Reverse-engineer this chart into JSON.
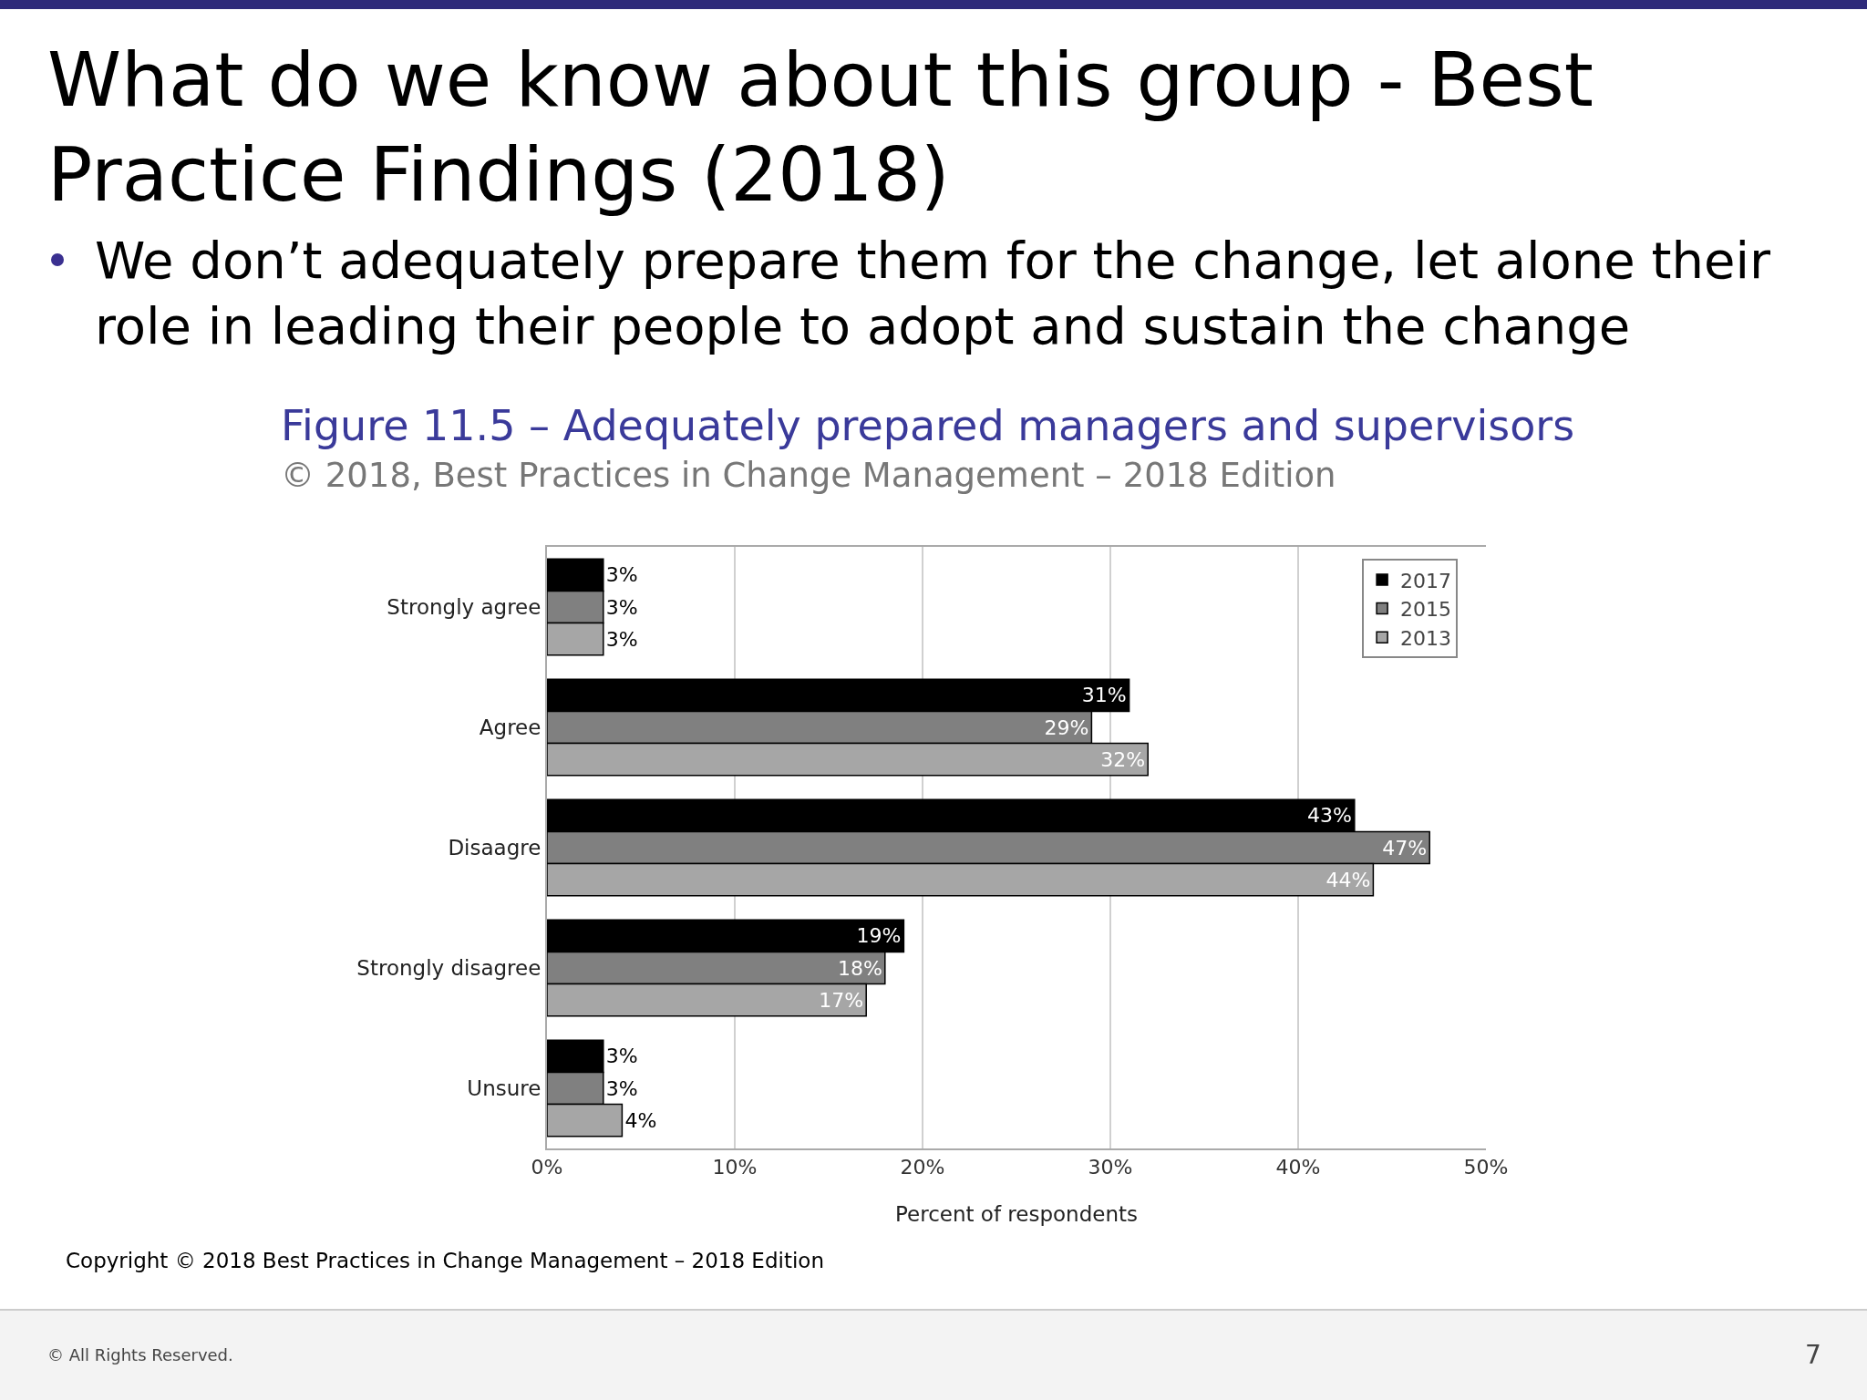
{
  "chart_data": {
    "type": "bar",
    "orientation": "horizontal",
    "title": "What do we know about this group - Best Practice Findings (2018)",
    "subtitle": "We don’t adequately prepare them for the change, let alone their role in leading their people to adopt and sustain the change",
    "categories": [
      "Strongly agree",
      "Agree",
      "Disaagre",
      "Strongly disagree",
      "Unsure"
    ],
    "series": [
      {
        "name": "2017",
        "color": "#000000",
        "values": [
          3,
          31,
          43,
          19,
          3
        ],
        "value_labels": [
          "3%",
          "31%",
          "43%",
          "19%",
          "3%"
        ]
      },
      {
        "name": "2015",
        "color": "#808080",
        "values": [
          3,
          29,
          47,
          18,
          3
        ],
        "value_labels": [
          "3%",
          "29%",
          "47%",
          "18%",
          "3%"
        ]
      },
      {
        "name": "2013",
        "color": "#a6a6a6",
        "values": [
          3,
          32,
          44,
          17,
          4
        ],
        "value_labels": [
          "3%",
          "32%",
          "44%",
          "17%",
          "4%"
        ]
      }
    ],
    "xlabel": "Percent of respondents",
    "xlim": [
      0,
      50
    ],
    "xticks": [
      {
        "value": 0,
        "label": "0%"
      },
      {
        "value": 10,
        "label": "10%"
      },
      {
        "value": 20,
        "label": "20%"
      },
      {
        "value": 30,
        "label": "30%"
      },
      {
        "value": 40,
        "label": "40%"
      },
      {
        "value": 50,
        "label": "50%"
      }
    ],
    "grid": "x",
    "legend": "top right",
    "annotations": [
      "Figure 11.5 – Adequately prepared managers and supervisors",
      "© 2018, Best Practices in Change Management – 2018 Edition",
      "Copyright © 2018 Best Practices in Change Management – 2018 Edition",
      "© All Rights Reserved.",
      "7"
    ]
  }
}
